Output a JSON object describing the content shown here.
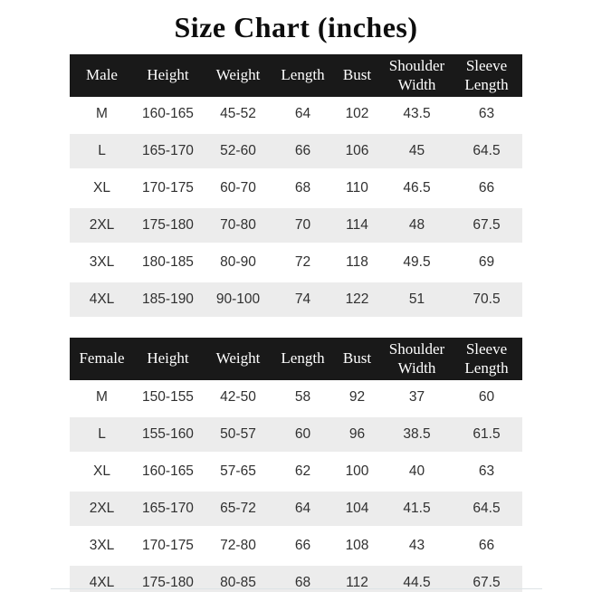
{
  "title": "Size Chart (inches)",
  "colors": {
    "header_bg": "#191919",
    "header_text": "#ffffff",
    "stripe_bg": "#ececec",
    "data_text": "#303030",
    "page_bg": "#ffffff"
  },
  "chart_data": [
    {
      "type": "table",
      "name": "male-size-table",
      "headers": [
        "Male",
        "Height",
        "Weight",
        "Length",
        "Bust",
        "Shoulder Width",
        "Sleeve Length"
      ],
      "rows": [
        [
          "M",
          "160-165",
          "45-52",
          "64",
          "102",
          "43.5",
          "63"
        ],
        [
          "L",
          "165-170",
          "52-60",
          "66",
          "106",
          "45",
          "64.5"
        ],
        [
          "XL",
          "170-175",
          "60-70",
          "68",
          "110",
          "46.5",
          "66"
        ],
        [
          "2XL",
          "175-180",
          "70-80",
          "70",
          "114",
          "48",
          "67.5"
        ],
        [
          "3XL",
          "180-185",
          "80-90",
          "72",
          "118",
          "49.5",
          "69"
        ],
        [
          "4XL",
          "185-190",
          "90-100",
          "74",
          "122",
          "51",
          "70.5"
        ]
      ]
    },
    {
      "type": "table",
      "name": "female-size-table",
      "headers": [
        "Female",
        "Height",
        "Weight",
        "Length",
        "Bust",
        "Shoulder Width",
        "Sleeve Length"
      ],
      "rows": [
        [
          "M",
          "150-155",
          "42-50",
          "58",
          "92",
          "37",
          "60"
        ],
        [
          "L",
          "155-160",
          "50-57",
          "60",
          "96",
          "38.5",
          "61.5"
        ],
        [
          "XL",
          "160-165",
          "57-65",
          "62",
          "100",
          "40",
          "63"
        ],
        [
          "2XL",
          "165-170",
          "65-72",
          "64",
          "104",
          "41.5",
          "64.5"
        ],
        [
          "3XL",
          "170-175",
          "72-80",
          "66",
          "108",
          "43",
          "66"
        ],
        [
          "4XL",
          "175-180",
          "80-85",
          "68",
          "112",
          "44.5",
          "67.5"
        ]
      ]
    }
  ]
}
